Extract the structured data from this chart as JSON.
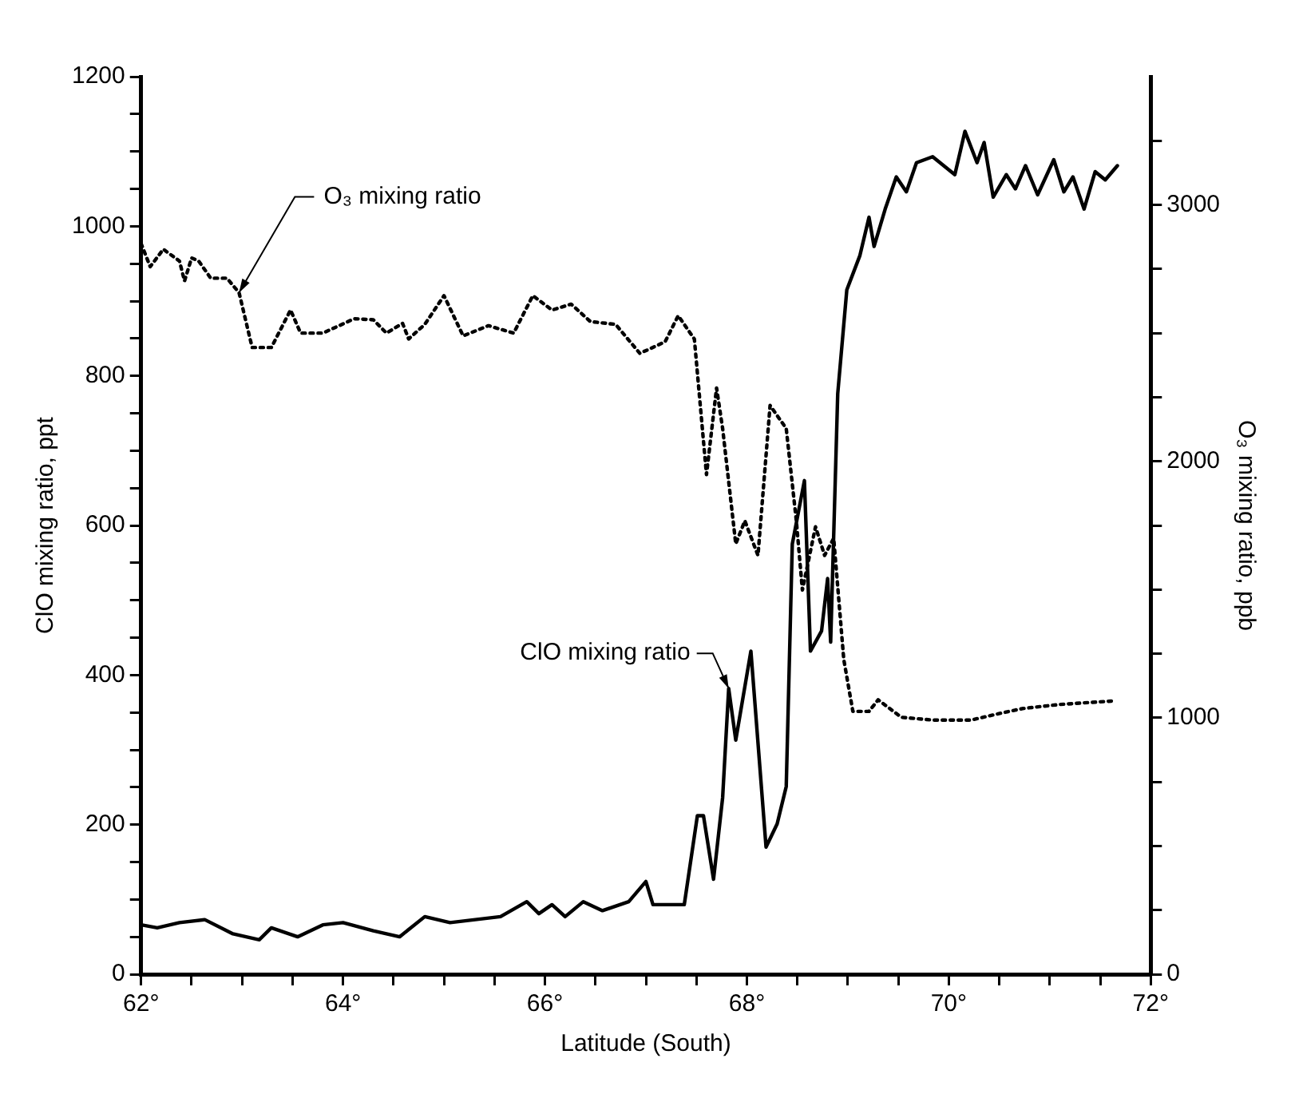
{
  "chart_data": {
    "type": "line",
    "xlabel": "Latitude (South)",
    "ylabel": "ClO mixing ratio, ppt",
    "y2label": "O₃ mixing ratio, ppb",
    "xlim": [
      62,
      72
    ],
    "ylim": [
      0,
      1200
    ],
    "y2lim": [
      0,
      3500
    ],
    "xticks": [
      {
        "value": 62,
        "label": "62°"
      },
      {
        "value": 62.5,
        "label": null
      },
      {
        "value": 63,
        "label": null
      },
      {
        "value": 63.5,
        "label": null
      },
      {
        "value": 64,
        "label": "64°"
      },
      {
        "value": 64.5,
        "label": null
      },
      {
        "value": 65,
        "label": null
      },
      {
        "value": 65.5,
        "label": null
      },
      {
        "value": 66,
        "label": "66°"
      },
      {
        "value": 66.5,
        "label": null
      },
      {
        "value": 67,
        "label": null
      },
      {
        "value": 67.5,
        "label": null
      },
      {
        "value": 68,
        "label": "68°"
      },
      {
        "value": 68.5,
        "label": null
      },
      {
        "value": 69,
        "label": null
      },
      {
        "value": 69.5,
        "label": null
      },
      {
        "value": 70,
        "label": "70°"
      },
      {
        "value": 70.5,
        "label": null
      },
      {
        "value": 71,
        "label": null
      },
      {
        "value": 71.5,
        "label": null
      },
      {
        "value": 72,
        "label": "72°"
      }
    ],
    "yticks": [
      0,
      {
        "value": 50,
        "label": null
      },
      {
        "value": 100,
        "label": null
      },
      {
        "value": 150,
        "label": null
      },
      200,
      {
        "value": 250,
        "label": null
      },
      {
        "value": 300,
        "label": null
      },
      {
        "value": 350,
        "label": null
      },
      400,
      {
        "value": 450,
        "label": null
      },
      {
        "value": 500,
        "label": null
      },
      {
        "value": 550,
        "label": null
      },
      600,
      {
        "value": 650,
        "label": null
      },
      {
        "value": 700,
        "label": null
      },
      {
        "value": 750,
        "label": null
      },
      800,
      {
        "value": 850,
        "label": null
      },
      {
        "value": 900,
        "label": null
      },
      {
        "value": 950,
        "label": null
      },
      1000,
      {
        "value": 1050,
        "label": null
      },
      {
        "value": 1100,
        "label": null
      },
      {
        "value": 1150,
        "label": null
      },
      1200
    ],
    "y2ticks": [
      0,
      {
        "value": 250,
        "label": null
      },
      {
        "value": 500,
        "label": null
      },
      {
        "value": 750,
        "label": null
      },
      1000,
      {
        "value": 1250,
        "label": null
      },
      {
        "value": 1500,
        "label": null
      },
      {
        "value": 1750,
        "label": null
      },
      2000,
      {
        "value": 2250,
        "label": null
      },
      {
        "value": 2500,
        "label": null
      },
      {
        "value": 2750,
        "label": null
      },
      3000,
      {
        "value": 3250,
        "label": null
      }
    ],
    "grid": false,
    "marker": "none",
    "series": [
      {
        "name": "ClO mixing ratio",
        "color": "#000000",
        "line_style": "solid",
        "x": [
          62.0,
          62.16,
          62.38,
          62.63,
          62.91,
          63.17,
          63.29,
          63.55,
          63.8,
          64.0,
          64.3,
          64.56,
          64.81,
          65.06,
          65.31,
          65.56,
          65.82,
          65.94,
          66.07,
          66.2,
          66.38,
          66.57,
          66.83,
          67.0,
          67.07,
          67.38,
          67.51,
          67.57,
          67.67,
          67.76,
          67.82,
          67.89,
          68.04,
          68.19,
          68.3,
          68.39,
          68.45,
          68.57,
          68.63,
          68.74,
          68.8,
          68.83,
          68.9,
          68.99,
          69.12,
          69.21,
          69.26,
          69.37,
          69.48,
          69.58,
          69.68,
          69.84,
          70.06,
          70.16,
          70.28,
          70.35,
          70.44,
          70.57,
          70.66,
          70.76,
          70.88,
          71.04,
          71.14,
          71.23,
          71.34,
          71.45,
          71.55,
          71.67
        ],
        "values": [
          66,
          62,
          69,
          73,
          54,
          46,
          62,
          50,
          66,
          69,
          58,
          50,
          77,
          69,
          73,
          77,
          97,
          81,
          93,
          77,
          97,
          85,
          97,
          124,
          93,
          93,
          212,
          212,
          127,
          236,
          382,
          313,
          432,
          170,
          201,
          251,
          575,
          660,
          432,
          459,
          529,
          444,
          776,
          915,
          961,
          1012,
          973,
          1023,
          1066,
          1046,
          1085,
          1093,
          1069,
          1127,
          1085,
          1112,
          1039,
          1069,
          1050,
          1081,
          1042,
          1089,
          1046,
          1066,
          1023,
          1073,
          1062,
          1081
        ]
      },
      {
        "name": "O₃ mixing ratio",
        "color": "#000000",
        "line_style": "dotted",
        "axis": "y2",
        "x": [
          62.0,
          62.09,
          62.22,
          62.38,
          62.43,
          62.5,
          62.57,
          62.69,
          62.85,
          62.97,
          63.1,
          63.29,
          63.48,
          63.58,
          63.8,
          64.11,
          64.3,
          64.43,
          64.59,
          64.65,
          64.81,
          65.0,
          65.19,
          65.44,
          65.69,
          65.88,
          66.07,
          66.26,
          66.45,
          66.7,
          66.94,
          67.19,
          67.32,
          67.48,
          67.6,
          67.7,
          67.76,
          67.89,
          67.98,
          68.11,
          68.23,
          68.39,
          68.49,
          68.55,
          68.68,
          68.77,
          68.86,
          68.96,
          69.05,
          69.21,
          69.3,
          69.53,
          69.84,
          70.22,
          70.47,
          70.73,
          71.1,
          71.61
        ],
        "values": [
          2849,
          2759,
          2827,
          2781,
          2703,
          2793,
          2781,
          2714,
          2714,
          2658,
          2444,
          2444,
          2590,
          2500,
          2500,
          2556,
          2552,
          2500,
          2538,
          2477,
          2534,
          2646,
          2489,
          2529,
          2500,
          2646,
          2590,
          2613,
          2545,
          2534,
          2421,
          2466,
          2568,
          2477,
          1948,
          2286,
          2128,
          1678,
          1768,
          1633,
          2218,
          2128,
          1768,
          1498,
          1745,
          1633,
          1700,
          1227,
          1025,
          1025,
          1070,
          1002,
          991,
          991,
          1014,
          1036,
          1052,
          1065
        ]
      }
    ]
  }
}
